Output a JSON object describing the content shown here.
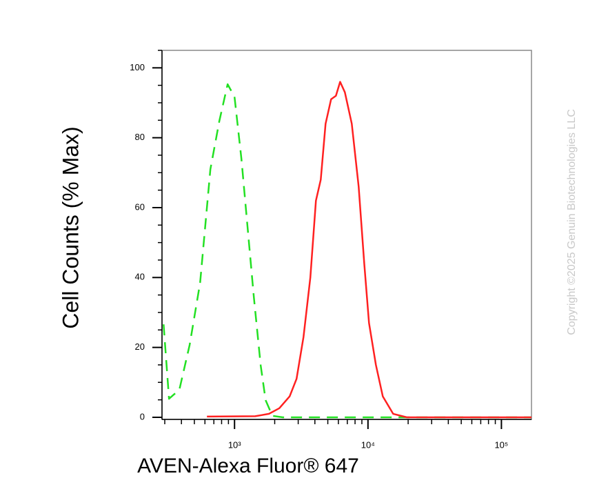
{
  "chart_data": {
    "type": "line",
    "x_label": "AVEN-Alexa Fluor® 647",
    "y_label": "Cell Counts (% Max)",
    "watermark": "Copyright ©2025 Genuin Biotechnologies LLC",
    "xscale": "log",
    "xlim": [
      286,
      168000
    ],
    "ylim": [
      -0.6,
      105
    ],
    "xticks": [
      {
        "value": 1000,
        "label": "10³"
      },
      {
        "value": 10000,
        "label": "10⁴"
      },
      {
        "value": 100000,
        "label": "10⁵"
      }
    ],
    "xminorticks": [
      300,
      400,
      500,
      600,
      700,
      800,
      900,
      2000,
      3000,
      4000,
      5000,
      6000,
      7000,
      8000,
      9000,
      20000,
      30000,
      40000,
      50000,
      60000,
      70000,
      80000,
      90000
    ],
    "yticks": [
      0,
      20,
      40,
      60,
      80,
      100
    ],
    "yminorticks": [
      5,
      10,
      15,
      25,
      30,
      35,
      45,
      50,
      55,
      65,
      70,
      75,
      85,
      90,
      95,
      105
    ],
    "series": [
      {
        "color": "#22e022",
        "dash": true,
        "x": [
          294,
          323,
          386,
          461,
          552,
          659,
          769,
          887,
          1000,
          1126,
          1239,
          1395,
          1571,
          1709,
          1923,
          2301,
          6714,
          22080,
          168000
        ],
        "values": [
          26.6,
          5.3,
          7.9,
          20.7,
          38.5,
          71,
          84.8,
          95.3,
          91.7,
          74,
          56.2,
          34.5,
          14.8,
          4.9,
          0.4,
          0,
          0,
          0,
          0
        ]
      },
      {
        "color": "#ff2020",
        "dash": false,
        "x": [
          621,
          1429,
          1811,
          2166,
          2589,
          2917,
          3287,
          3700,
          4071,
          4426,
          4810,
          5291,
          5754,
          6180,
          6716,
          7564,
          8517,
          9374,
          10180,
          11460,
          12910,
          15440,
          19590,
          168000
        ],
        "values": [
          0.2,
          0.3,
          1,
          2.6,
          6,
          11,
          23,
          40,
          62,
          68,
          84,
          91,
          92,
          96,
          93,
          84,
          66,
          44,
          27,
          15,
          6,
          1,
          0,
          0
        ]
      }
    ]
  }
}
